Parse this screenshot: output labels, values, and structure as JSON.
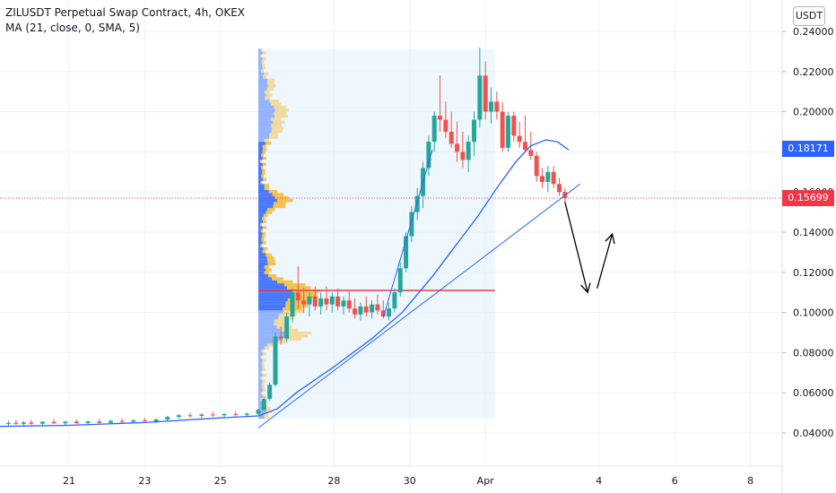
{
  "legend": {
    "title": "ZILUSDT Perpetual Swap Contract, 4h, OKEX",
    "indicator": "MA (21, close, 0, SMA, 5)"
  },
  "currency_button": "USDT",
  "price_tags": {
    "ma": {
      "value": "0.18171",
      "color": "#2962ff"
    },
    "last": {
      "value": "0.15699",
      "color": "#f23645"
    }
  },
  "chart_data": {
    "type": "candlestick",
    "y_axis": {
      "min": 0.02,
      "max": 0.25,
      "ticks": [
        "0.24000",
        "0.22000",
        "0.20000",
        "0.18000",
        "0.16000",
        "0.14000",
        "0.12000",
        "0.10000",
        "0.08000",
        "0.06000",
        "0.04000"
      ]
    },
    "x_axis": {
      "ticks": [
        {
          "label": "21",
          "day": 21
        },
        {
          "label": "23",
          "day": 23
        },
        {
          "label": "25",
          "day": 25
        },
        {
          "label": "28",
          "day": 28
        },
        {
          "label": "30",
          "day": 30
        },
        {
          "label": "Apr",
          "day": 32
        },
        {
          "label": "4",
          "day": 35
        },
        {
          "label": "6",
          "day": 37
        },
        {
          "label": "8",
          "day": 39
        }
      ]
    },
    "last_price": 0.15699,
    "ma_value": 0.18171,
    "poc_price": 0.111,
    "candles": [
      [
        19.4,
        0.0445,
        0.046,
        0.0435,
        0.045
      ],
      [
        19.6,
        0.045,
        0.0465,
        0.044,
        0.0445
      ],
      [
        19.8,
        0.0445,
        0.046,
        0.0438,
        0.0452
      ],
      [
        20.0,
        0.0452,
        0.0466,
        0.044,
        0.0446
      ],
      [
        20.3,
        0.0446,
        0.046,
        0.0438,
        0.0455
      ],
      [
        20.6,
        0.0455,
        0.0468,
        0.0445,
        0.0448
      ],
      [
        20.9,
        0.0448,
        0.046,
        0.044,
        0.0456
      ],
      [
        21.2,
        0.0456,
        0.0466,
        0.0446,
        0.0449
      ],
      [
        21.5,
        0.0449,
        0.0462,
        0.0442,
        0.0457
      ],
      [
        21.8,
        0.0457,
        0.047,
        0.0447,
        0.045
      ],
      [
        22.1,
        0.045,
        0.0465,
        0.0443,
        0.046
      ],
      [
        22.4,
        0.046,
        0.0473,
        0.045,
        0.0455
      ],
      [
        22.7,
        0.0455,
        0.0468,
        0.0448,
        0.0463
      ],
      [
        23.0,
        0.0463,
        0.0476,
        0.0455,
        0.0458
      ],
      [
        23.3,
        0.0458,
        0.0472,
        0.045,
        0.0467
      ],
      [
        23.6,
        0.0467,
        0.0485,
        0.046,
        0.048
      ],
      [
        23.9,
        0.048,
        0.0495,
        0.047,
        0.0488
      ],
      [
        24.2,
        0.0488,
        0.05,
        0.0478,
        0.0485
      ],
      [
        24.5,
        0.0485,
        0.0498,
        0.0475,
        0.0492
      ],
      [
        24.8,
        0.0492,
        0.0505,
        0.048,
        0.0488
      ],
      [
        25.1,
        0.0488,
        0.05,
        0.0478,
        0.0494
      ],
      [
        25.4,
        0.0494,
        0.0508,
        0.0483,
        0.049
      ],
      [
        25.7,
        0.049,
        0.0502,
        0.048,
        0.0496
      ],
      [
        26.0,
        0.0496,
        0.052,
        0.049,
        0.0515
      ],
      [
        26.15,
        0.0515,
        0.058,
        0.051,
        0.057
      ],
      [
        26.3,
        0.057,
        0.065,
        0.056,
        0.064
      ],
      [
        26.45,
        0.064,
        0.09,
        0.063,
        0.088
      ],
      [
        26.6,
        0.088,
        0.093,
        0.084,
        0.087
      ],
      [
        26.75,
        0.087,
        0.1,
        0.085,
        0.098
      ],
      [
        26.9,
        0.098,
        0.112,
        0.095,
        0.11
      ],
      [
        27.05,
        0.11,
        0.123,
        0.102,
        0.106
      ],
      [
        27.2,
        0.106,
        0.112,
        0.1,
        0.104
      ],
      [
        27.35,
        0.104,
        0.11,
        0.098,
        0.108
      ],
      [
        27.5,
        0.108,
        0.113,
        0.101,
        0.103
      ],
      [
        27.65,
        0.103,
        0.11,
        0.099,
        0.107
      ],
      [
        27.8,
        0.107,
        0.113,
        0.101,
        0.104
      ],
      [
        27.95,
        0.104,
        0.11,
        0.1,
        0.108
      ],
      [
        28.1,
        0.108,
        0.112,
        0.101,
        0.103
      ],
      [
        28.25,
        0.103,
        0.108,
        0.099,
        0.106
      ],
      [
        28.4,
        0.106,
        0.111,
        0.1,
        0.102
      ],
      [
        28.55,
        0.102,
        0.107,
        0.097,
        0.099
      ],
      [
        28.7,
        0.099,
        0.105,
        0.096,
        0.103
      ],
      [
        28.85,
        0.103,
        0.108,
        0.098,
        0.1
      ],
      [
        29.0,
        0.1,
        0.106,
        0.097,
        0.104
      ],
      [
        29.15,
        0.104,
        0.109,
        0.099,
        0.101
      ],
      [
        29.3,
        0.101,
        0.106,
        0.097,
        0.098
      ],
      [
        29.45,
        0.098,
        0.105,
        0.096,
        0.102
      ],
      [
        29.6,
        0.102,
        0.112,
        0.1,
        0.11
      ],
      [
        29.75,
        0.11,
        0.125,
        0.108,
        0.122
      ],
      [
        29.9,
        0.122,
        0.14,
        0.12,
        0.138
      ],
      [
        30.05,
        0.138,
        0.153,
        0.135,
        0.15
      ],
      [
        30.2,
        0.15,
        0.162,
        0.146,
        0.158
      ],
      [
        30.35,
        0.158,
        0.175,
        0.152,
        0.172
      ],
      [
        30.5,
        0.172,
        0.188,
        0.168,
        0.185
      ],
      [
        30.65,
        0.185,
        0.2,
        0.18,
        0.198
      ],
      [
        30.8,
        0.198,
        0.218,
        0.19,
        0.196
      ],
      [
        30.95,
        0.196,
        0.205,
        0.187,
        0.19
      ],
      [
        31.1,
        0.19,
        0.2,
        0.182,
        0.184
      ],
      [
        31.25,
        0.184,
        0.195,
        0.175,
        0.18
      ],
      [
        31.4,
        0.18,
        0.19,
        0.172,
        0.176
      ],
      [
        31.55,
        0.176,
        0.188,
        0.17,
        0.185
      ],
      [
        31.7,
        0.185,
        0.2,
        0.178,
        0.196
      ],
      [
        31.85,
        0.196,
        0.232,
        0.192,
        0.218
      ],
      [
        32.0,
        0.218,
        0.225,
        0.196,
        0.2
      ],
      [
        32.15,
        0.2,
        0.212,
        0.194,
        0.205
      ],
      [
        32.3,
        0.205,
        0.21,
        0.196,
        0.2
      ],
      [
        32.45,
        0.2,
        0.205,
        0.18,
        0.182
      ],
      [
        32.6,
        0.182,
        0.2,
        0.18,
        0.198
      ],
      [
        32.75,
        0.198,
        0.2,
        0.185,
        0.188
      ],
      [
        32.9,
        0.188,
        0.195,
        0.182,
        0.185
      ],
      [
        33.05,
        0.185,
        0.198,
        0.18,
        0.181
      ],
      [
        33.2,
        0.181,
        0.19,
        0.176,
        0.178
      ],
      [
        33.35,
        0.178,
        0.18,
        0.165,
        0.168
      ],
      [
        33.5,
        0.168,
        0.172,
        0.162,
        0.165
      ],
      [
        33.65,
        0.165,
        0.173,
        0.16,
        0.17
      ],
      [
        33.8,
        0.17,
        0.173,
        0.162,
        0.164
      ],
      [
        33.95,
        0.164,
        0.167,
        0.158,
        0.16
      ],
      [
        34.1,
        0.16,
        0.162,
        0.155,
        0.157
      ]
    ],
    "ma_line": [
      [
        19.0,
        0.0432
      ],
      [
        21.0,
        0.0438
      ],
      [
        23.0,
        0.0452
      ],
      [
        25.0,
        0.0475
      ],
      [
        26.0,
        0.0485
      ],
      [
        26.5,
        0.052
      ],
      [
        27.0,
        0.06
      ],
      [
        28.0,
        0.073
      ],
      [
        29.0,
        0.087
      ],
      [
        29.8,
        0.1
      ],
      [
        30.6,
        0.118
      ],
      [
        31.2,
        0.133
      ],
      [
        31.8,
        0.148
      ],
      [
        32.3,
        0.162
      ],
      [
        32.8,
        0.175
      ],
      [
        33.2,
        0.183
      ],
      [
        33.6,
        0.186
      ],
      [
        33.9,
        0.185
      ],
      [
        34.2,
        0.181
      ]
    ],
    "trendlines": [
      [
        [
          26.0,
          0.0425
        ],
        [
          34.5,
          0.164
        ]
      ],
      [
        [
          29.3,
          0.0975
        ],
        [
          30.6,
          0.181
        ]
      ]
    ],
    "arrows": [
      [
        [
          34.1,
          0.155
        ],
        [
          34.7,
          0.11
        ]
      ],
      [
        [
          34.95,
          0.112
        ],
        [
          35.35,
          0.139
        ]
      ]
    ],
    "volume_profile": {
      "range": [
        26.0,
        32.25
      ],
      "low": 0.047,
      "high": 0.231,
      "poc_end": 32.25
    }
  }
}
